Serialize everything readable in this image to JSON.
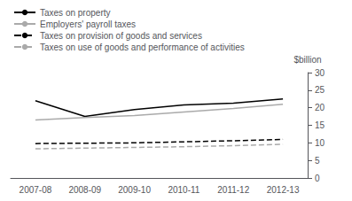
{
  "chart_data": {
    "type": "line",
    "categories": [
      "2007-08",
      "2008-09",
      "2009-10",
      "2010-11",
      "2011-12",
      "2012-13"
    ],
    "series": [
      {
        "name": "Taxes on property",
        "color": "#000000",
        "line_style": "solid",
        "values": [
          22.0,
          17.5,
          19.5,
          20.8,
          21.3,
          22.5
        ]
      },
      {
        "name": "Employers' payroll taxes",
        "color": "#aaaaaa",
        "line_style": "solid",
        "values": [
          16.5,
          17.2,
          17.8,
          18.8,
          19.8,
          21.0
        ]
      },
      {
        "name": "Taxes on provision of goods and services",
        "color": "#000000",
        "line_style": "dashed",
        "values": [
          9.8,
          9.9,
          10.0,
          10.3,
          10.6,
          11.0
        ]
      },
      {
        "name": "Taxes on use of goods and performance of activities",
        "color": "#aaaaaa",
        "line_style": "dashed",
        "values": [
          8.3,
          8.5,
          8.7,
          8.9,
          9.2,
          9.6
        ]
      }
    ],
    "ylabel": "$billion",
    "ylim": [
      0,
      30
    ],
    "yticks": [
      0,
      5,
      10,
      15,
      20,
      25,
      30
    ],
    "grid": false,
    "legend": "upper left"
  }
}
